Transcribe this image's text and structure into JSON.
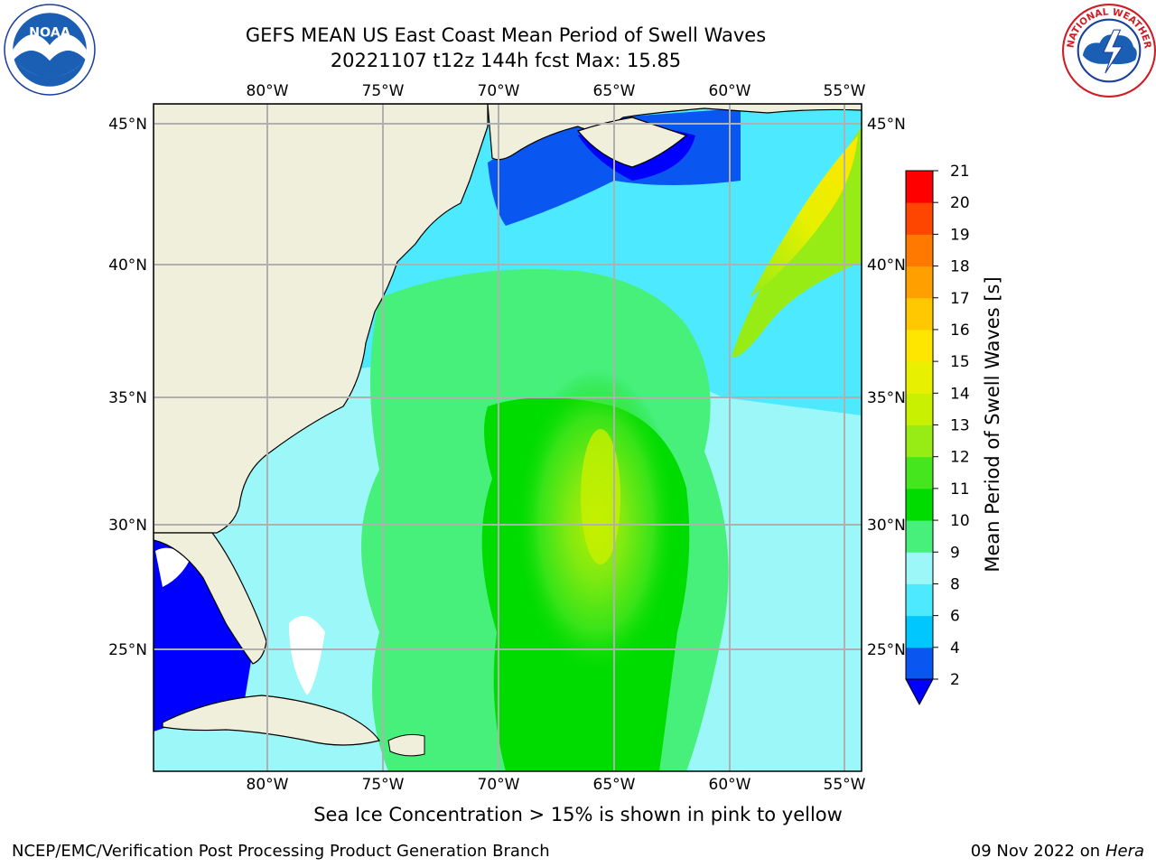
{
  "title_line1": "GEFS MEAN US East Coast Mean Period of Swell Waves",
  "title_line2": "20221107 t12z 144h fcst   Max: 15.85",
  "lon_labels": [
    "80°W",
    "75°W",
    "70°W",
    "65°W",
    "60°W",
    "55°W"
  ],
  "lat_labels": [
    "45°N",
    "40°N",
    "35°N",
    "30°N",
    "25°N"
  ],
  "colorbar": {
    "label": "Mean Period of Swell Waves [s]",
    "ticks": [
      "2",
      "4",
      "6",
      "8",
      "9",
      "10",
      "11",
      "12",
      "13",
      "14",
      "15",
      "16",
      "17",
      "18",
      "19",
      "20",
      "21"
    ],
    "colors": [
      "#0a56f0",
      "#00c8ff",
      "#4deaff",
      "#9cf8f8",
      "#46f07a",
      "#00dc00",
      "#46e61e",
      "#96ec14",
      "#c8f000",
      "#e6f000",
      "#ffe600",
      "#ffc800",
      "#ffa000",
      "#ff7800",
      "#ff4600",
      "#ff0000"
    ],
    "under_color": "#0000ff"
  },
  "note": "Sea Ice Concentration > 15% is shown in pink to yellow",
  "footer_left": "NCEP/EMC/Verification Post Processing Product Generation Branch",
  "footer_right_date": "09 Nov 2022 on",
  "footer_right_host": "Hera",
  "logos": {
    "left": "NOAA",
    "right": "NATIONAL WEATHER SERVICE"
  }
}
